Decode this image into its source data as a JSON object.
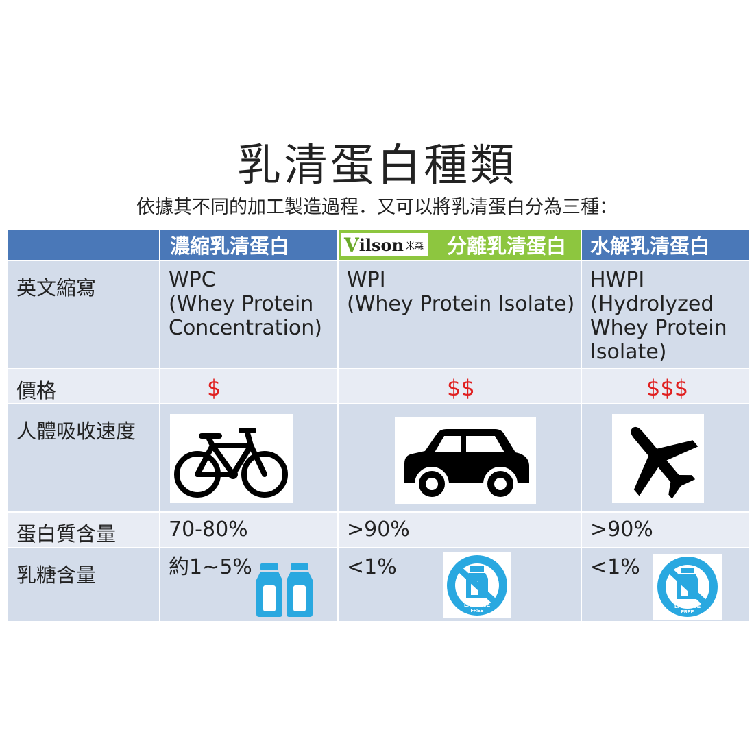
{
  "title": "乳清蛋白種類",
  "subtitle": "依據其不同的加工製造過程．又可以將乳清蛋白分為三種：",
  "headers": [
    "濃縮乳清蛋白",
    "分離乳清蛋白",
    "水解乳清蛋白"
  ],
  "brand": {
    "name_v": "V",
    "name_rest": "ilson",
    "name_cn": "米森"
  },
  "rows": {
    "abbr_label": "英文縮寫",
    "abbr": [
      "WPC\n(Whey Protein\nConcentration)",
      "WPI\n(Whey Protein Isolate)",
      "HWPI\n(Hydrolyzed\nWhey Protein\nIsolate)"
    ],
    "price_label": "價格",
    "price": [
      "$",
      "$$",
      "$$$"
    ],
    "speed_label": "人體吸收速度",
    "protein_label": "蛋白質含量",
    "protein": [
      "70-80%",
      ">90%",
      ">90%"
    ],
    "lactose_label": "乳糖含量",
    "lactose": [
      "約1~5%",
      "<1%",
      "<1%"
    ]
  },
  "badge": {
    "line1": "LACTOSE",
    "line2": "FREE"
  },
  "icons": [
    "bicycle-icon",
    "car-icon",
    "airplane-icon",
    "milk-bottles-icon",
    "lactose-free-icon"
  ],
  "colors": {
    "header_blue": "#4a78b8",
    "header_green": "#8dc63f",
    "row_dark": "#d3dcea",
    "row_light": "#e8ecf4",
    "price_red": "#e02020",
    "badge_blue": "#29a8e0"
  }
}
